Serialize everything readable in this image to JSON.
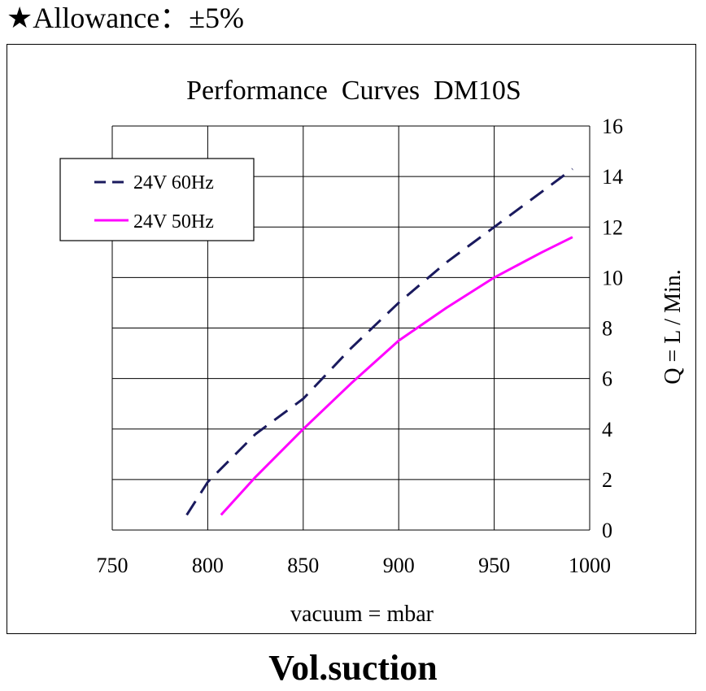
{
  "header": {
    "star": "★",
    "text": "Allowance：±5%"
  },
  "footer": {
    "text": "Vol.suction"
  },
  "colors": {
    "series_60hz": "#1a1a5e",
    "series_50hz": "#ff00ff",
    "grid": "#000000"
  },
  "chart_data": {
    "type": "line",
    "title": "Performance  Curves  DM10S",
    "xlabel": "vacuum = mbar",
    "ylabel": "Q = L / Min.",
    "xlim": [
      750,
      1000
    ],
    "ylim": [
      0,
      16
    ],
    "x_ticks": [
      "750",
      "800",
      "850",
      "900",
      "950",
      "1000"
    ],
    "y_ticks": [
      "0",
      "2",
      "4",
      "6",
      "8",
      "10",
      "12",
      "14",
      "16"
    ],
    "grid": true,
    "legend_position": "top-left",
    "series": [
      {
        "name": "24V 60Hz",
        "style": "dashed",
        "color": "#1a1a5e",
        "x": [
          789,
          800,
          825,
          850,
          875,
          900,
          925,
          950,
          975,
          991
        ],
        "y": [
          0.6,
          1.9,
          3.8,
          5.2,
          7.2,
          9.0,
          10.6,
          12.0,
          13.4,
          14.3
        ]
      },
      {
        "name": "24V 50Hz",
        "style": "solid",
        "color": "#ff00ff",
        "x": [
          807,
          825,
          850,
          875,
          900,
          925,
          950,
          975,
          991
        ],
        "y": [
          0.6,
          2.1,
          4.0,
          5.8,
          7.5,
          8.8,
          10.0,
          11.0,
          11.6
        ]
      }
    ]
  }
}
